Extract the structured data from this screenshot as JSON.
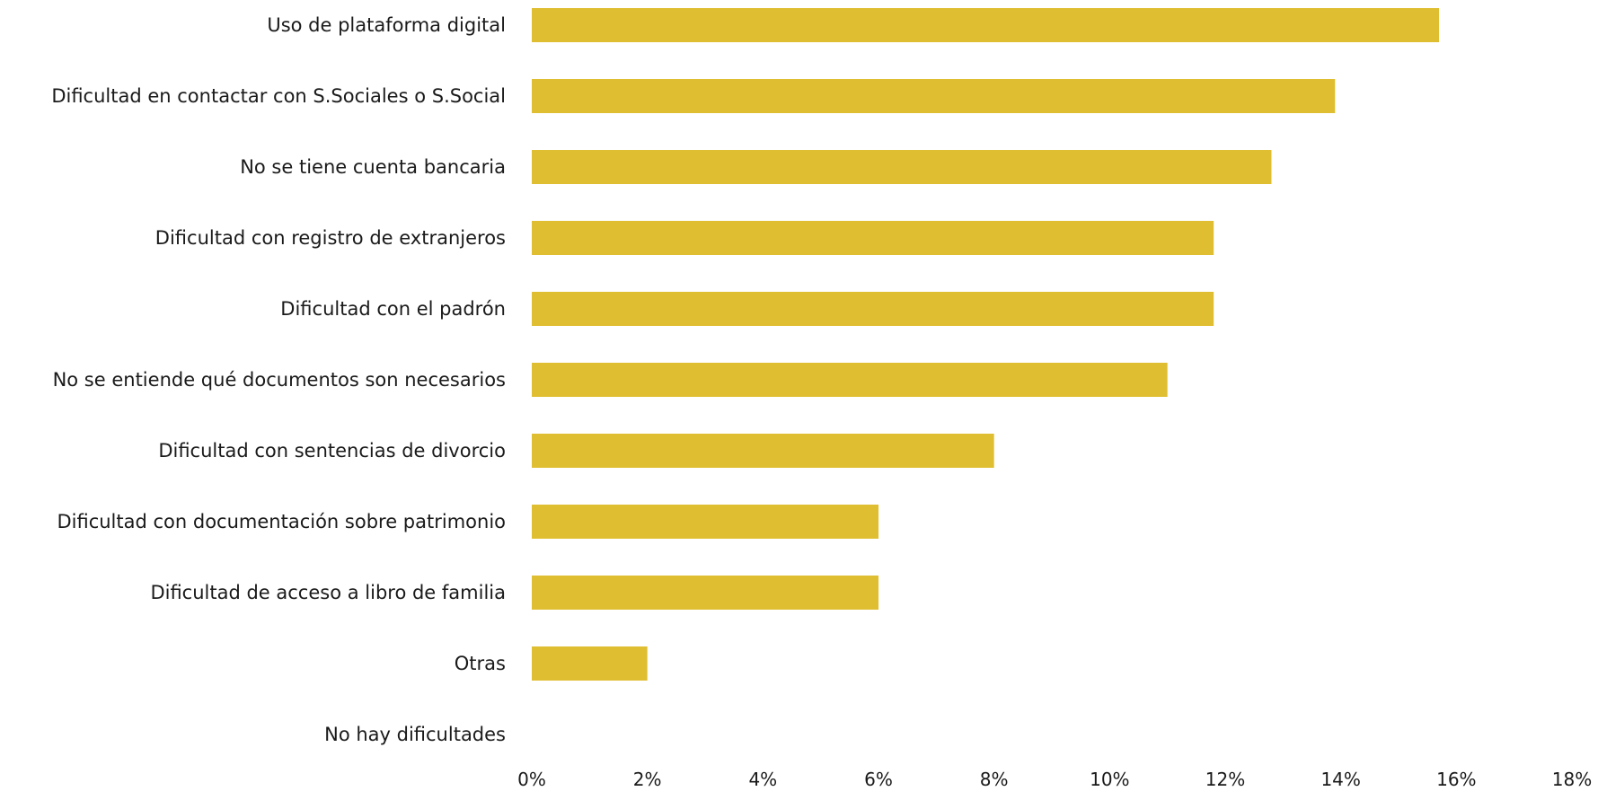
{
  "chart_data": {
    "type": "bar",
    "orientation": "horizontal",
    "title": "",
    "xlabel": "",
    "ylabel": "",
    "categories": [
      "Uso de plataforma digital",
      "Dificultad en contactar con S.Sociales o S.Social",
      "No se tiene cuenta bancaria",
      "Dificultad con registro de extranjeros",
      "Dificultad con el padrón",
      "No se entiende qué documentos son necesarios",
      "Dificultad con sentencias de divorcio",
      "Dificultad con documentación sobre patrimonio",
      "Dificultad de acceso a libro de familia",
      "Otras",
      "No hay dificultades"
    ],
    "values": [
      15.7,
      13.9,
      12.8,
      11.8,
      11.8,
      11.0,
      8.0,
      6.0,
      6.0,
      2.0,
      0
    ],
    "xlim": [
      0,
      18
    ],
    "x_ticks": [
      0,
      2,
      4,
      6,
      8,
      10,
      12,
      14,
      16,
      18
    ],
    "tick_labels": [
      "0%",
      "2%",
      "4%",
      "6%",
      "8%",
      "10%",
      "12%",
      "14%",
      "16%",
      "18%"
    ],
    "bar_color": "#E0BE32",
    "grid": false,
    "legend": "none"
  }
}
